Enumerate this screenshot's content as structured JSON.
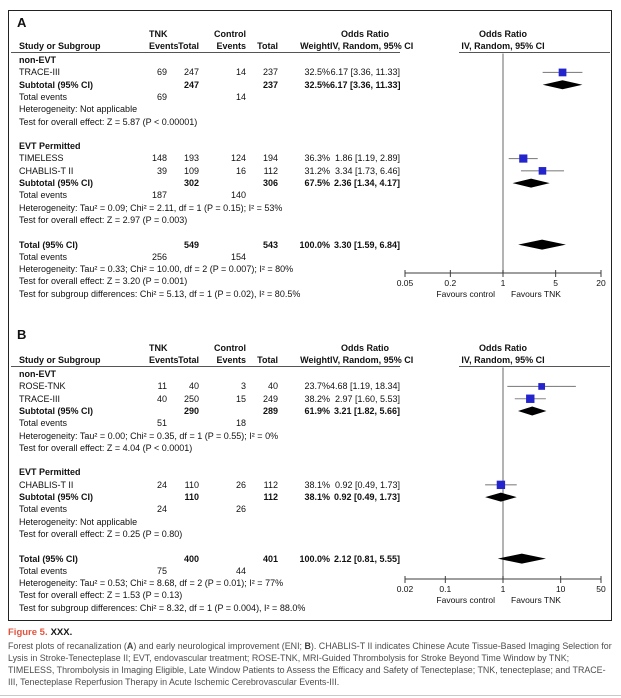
{
  "chart_data": [
    {
      "type": "forest",
      "panel": "A",
      "outcome": "Recanalization",
      "x_scale": "log",
      "x_ticks": [
        0.05,
        0.2,
        1,
        5,
        20
      ],
      "xlabel_left": "Favours control",
      "xlabel_right": "Favours TNK",
      "effect_label": "Odds Ratio IV, Random, 95% CI",
      "points": [
        {
          "name": "TRACE-III (non-EVT)",
          "or": 6.17,
          "lo": 3.36,
          "hi": 11.33,
          "weight": 32.5
        },
        {
          "name": "Subtotal non-EVT",
          "or": 6.17,
          "lo": 3.36,
          "hi": 11.33,
          "weight": 32.5,
          "pooled": true
        },
        {
          "name": "TIMELESS",
          "or": 1.86,
          "lo": 1.19,
          "hi": 2.89,
          "weight": 36.3
        },
        {
          "name": "CHABLIS-T II",
          "or": 3.34,
          "lo": 1.73,
          "hi": 6.46,
          "weight": 31.2
        },
        {
          "name": "Subtotal EVT Permitted",
          "or": 2.36,
          "lo": 1.34,
          "hi": 4.17,
          "weight": 67.5,
          "pooled": true
        },
        {
          "name": "Total",
          "or": 3.3,
          "lo": 1.59,
          "hi": 6.84,
          "weight": 100.0,
          "pooled": true
        }
      ]
    },
    {
      "type": "forest",
      "panel": "B",
      "outcome": "Early neurological improvement (ENI)",
      "x_scale": "log",
      "x_ticks": [
        0.02,
        0.1,
        1,
        10,
        50
      ],
      "xlabel_left": "Favours control",
      "xlabel_right": "Favours TNK",
      "effect_label": "Odds Ratio IV, Random, 95% CI",
      "points": [
        {
          "name": "ROSE-TNK (non-EVT)",
          "or": 4.68,
          "lo": 1.19,
          "hi": 18.34,
          "weight": 23.7
        },
        {
          "name": "TRACE-III (non-EVT)",
          "or": 2.97,
          "lo": 1.6,
          "hi": 5.53,
          "weight": 38.2
        },
        {
          "name": "Subtotal non-EVT",
          "or": 3.21,
          "lo": 1.82,
          "hi": 5.66,
          "weight": 61.9,
          "pooled": true
        },
        {
          "name": "CHABLIS-T II (EVT Permitted)",
          "or": 0.92,
          "lo": 0.49,
          "hi": 1.73,
          "weight": 38.1
        },
        {
          "name": "Subtotal EVT Permitted",
          "or": 0.92,
          "lo": 0.49,
          "hi": 1.73,
          "weight": 38.1,
          "pooled": true
        },
        {
          "name": "Total",
          "or": 2.12,
          "lo": 0.81,
          "hi": 5.55,
          "weight": 100.0,
          "pooled": true
        }
      ]
    }
  ],
  "panels": [
    {
      "label": "A",
      "columns": {
        "study": "Study or Subgroup",
        "events": "Events",
        "total": "Total",
        "weight": "Weight",
        "or_ci": "IV, Random, 95% CI",
        "tnk": "TNK",
        "control": "Control",
        "odds_ratio": "Odds Ratio"
      },
      "axis": {
        "ticks": [
          "0.05",
          "0.2",
          "1",
          "5",
          "20"
        ],
        "favours_left": "Favours control",
        "favours_right": "Favours TNK"
      },
      "rows": [
        {
          "type": "group",
          "label": "non-EVT"
        },
        {
          "type": "study",
          "label": "TRACE-III",
          "e1": "69",
          "t1": "247",
          "e2": "14",
          "t2": "237",
          "w": "32.5%",
          "or": "6.17 [3.36, 11.33]",
          "est": 6.17,
          "lo": 3.36,
          "hi": 11.33
        },
        {
          "type": "subtotal",
          "label": "Subtotal (95% CI)",
          "t1": "247",
          "t2": "237",
          "w": "32.5%",
          "or": "6.17 [3.36, 11.33]",
          "est": 6.17,
          "lo": 3.36,
          "hi": 11.33
        },
        {
          "type": "events",
          "label": "Total events",
          "e1": "69",
          "e2": "14"
        },
        {
          "type": "note",
          "label": "Heterogeneity: Not applicable"
        },
        {
          "type": "note",
          "label": "Test for overall effect: Z = 5.87 (P < 0.00001)"
        },
        {
          "type": "spacer"
        },
        {
          "type": "group",
          "label": "EVT Permitted"
        },
        {
          "type": "study",
          "label": "TIMELESS",
          "e1": "148",
          "t1": "193",
          "e2": "124",
          "t2": "194",
          "w": "36.3%",
          "or": "1.86 [1.19, 2.89]",
          "est": 1.86,
          "lo": 1.19,
          "hi": 2.89
        },
        {
          "type": "study",
          "label": "CHABLIS-T II",
          "e1": "39",
          "t1": "109",
          "e2": "16",
          "t2": "112",
          "w": "31.2%",
          "or": "3.34 [1.73, 6.46]",
          "est": 3.34,
          "lo": 1.73,
          "hi": 6.46
        },
        {
          "type": "subtotal",
          "label": "Subtotal (95% CI)",
          "t1": "302",
          "t2": "306",
          "w": "67.5%",
          "or": "2.36 [1.34, 4.17]",
          "est": 2.36,
          "lo": 1.34,
          "hi": 4.17
        },
        {
          "type": "events",
          "label": "Total events",
          "e1": "187",
          "e2": "140"
        },
        {
          "type": "note",
          "label": "Heterogeneity: Tau² = 0.09; Chi² = 2.11, df = 1 (P = 0.15); I² = 53%"
        },
        {
          "type": "note",
          "label": "Test for overall effect: Z = 2.97 (P = 0.003)"
        },
        {
          "type": "spacer"
        },
        {
          "type": "total",
          "label": "Total (95% CI)",
          "t1": "549",
          "t2": "543",
          "w": "100.0%",
          "or": "3.30 [1.59, 6.84]",
          "est": 3.3,
          "lo": 1.59,
          "hi": 6.84
        },
        {
          "type": "events",
          "label": "Total events",
          "e1": "256",
          "e2": "154"
        },
        {
          "type": "note",
          "label": "Heterogeneity: Tau² = 0.33; Chi² = 10.00, df = 2 (P = 0.007); I² = 80%"
        },
        {
          "type": "note",
          "label": "Test for overall effect: Z = 3.20 (P = 0.001)"
        },
        {
          "type": "note",
          "label": "Test for subgroup differences: Chi² = 5.13, df = 1 (P = 0.02), I² = 80.5%"
        }
      ]
    },
    {
      "label": "B",
      "columns": {
        "study": "Study or Subgroup",
        "events": "Events",
        "total": "Total",
        "weight": "Weight",
        "or_ci": "IV, Random, 95% CI",
        "tnk": "TNK",
        "control": "Control",
        "odds_ratio": "Odds Ratio"
      },
      "axis": {
        "ticks": [
          "0.02",
          "0.1",
          "1",
          "10",
          "50"
        ],
        "favours_left": "Favours control",
        "favours_right": "Favours TNK"
      },
      "rows": [
        {
          "type": "group",
          "label": "non-EVT"
        },
        {
          "type": "study",
          "label": "ROSE-TNK",
          "e1": "11",
          "t1": "40",
          "e2": "3",
          "t2": "40",
          "w": "23.7%",
          "or": "4.68 [1.19, 18.34]",
          "est": 4.68,
          "lo": 1.19,
          "hi": 18.34
        },
        {
          "type": "study",
          "label": "TRACE-III",
          "e1": "40",
          "t1": "250",
          "e2": "15",
          "t2": "249",
          "w": "38.2%",
          "or": "2.97 [1.60, 5.53]",
          "est": 2.97,
          "lo": 1.6,
          "hi": 5.53
        },
        {
          "type": "subtotal",
          "label": "Subtotal (95% CI)",
          "t1": "290",
          "t2": "289",
          "w": "61.9%",
          "or": "3.21 [1.82, 5.66]",
          "est": 3.21,
          "lo": 1.82,
          "hi": 5.66
        },
        {
          "type": "events",
          "label": "Total events",
          "e1": "51",
          "e2": "18"
        },
        {
          "type": "note",
          "label": "Heterogeneity: Tau² = 0.00; Chi² = 0.35, df = 1 (P = 0.55); I² = 0%"
        },
        {
          "type": "note",
          "label": "Test for overall effect: Z = 4.04 (P < 0.0001)"
        },
        {
          "type": "spacer"
        },
        {
          "type": "group",
          "label": "EVT Permitted"
        },
        {
          "type": "study",
          "label": "CHABLIS-T II",
          "e1": "24",
          "t1": "110",
          "e2": "26",
          "t2": "112",
          "w": "38.1%",
          "or": "0.92 [0.49, 1.73]",
          "est": 0.92,
          "lo": 0.49,
          "hi": 1.73
        },
        {
          "type": "subtotal",
          "label": "Subtotal (95% CI)",
          "t1": "110",
          "t2": "112",
          "w": "38.1%",
          "or": "0.92 [0.49, 1.73]",
          "est": 0.92,
          "lo": 0.49,
          "hi": 1.73
        },
        {
          "type": "events",
          "label": "Total events",
          "e1": "24",
          "e2": "26"
        },
        {
          "type": "note",
          "label": "Heterogeneity: Not applicable"
        },
        {
          "type": "note",
          "label": "Test for overall effect: Z = 0.25 (P = 0.80)"
        },
        {
          "type": "spacer"
        },
        {
          "type": "total",
          "label": "Total (95% CI)",
          "t1": "400",
          "t2": "401",
          "w": "100.0%",
          "or": "2.12 [0.81, 5.55]",
          "est": 2.12,
          "lo": 0.81,
          "hi": 5.55
        },
        {
          "type": "events",
          "label": "Total events",
          "e1": "75",
          "e2": "44"
        },
        {
          "type": "note",
          "label": "Heterogeneity: Tau² = 0.53; Chi² = 8.68, df = 2 (P = 0.01); I² = 77%"
        },
        {
          "type": "note",
          "label": "Test for overall effect: Z = 1.53 (P = 0.13)"
        },
        {
          "type": "note",
          "label": "Test for subgroup differences: Chi² = 8.32, df = 1 (P = 0.004), I² = 88.0%"
        }
      ]
    }
  ],
  "caption": {
    "label": "Figure 5.",
    "title": "XXX.",
    "segments": [
      {
        "t": "Forest plots of recanalization ("
      },
      {
        "t": "A",
        "b": true
      },
      {
        "t": ") and early neurological improvement (ENI; "
      },
      {
        "t": "B",
        "b": true
      },
      {
        "t": "). CHABLIS-T II indicates Chinese Acute Tissue-Based Imaging Selection for Lysis in Stroke-Tenecteplase II; EVT, endovascular treatment; ROSE-TNK, MRI-Guided Thrombolysis for Stroke Beyond Time Window by TNK; TIMELESS, Thrombolysis in Imaging Eligible, Late Window Patients to Assess the Efficacy and Safety of Tenecteplase; TNK, tenecteplase; and TRACE-III, Tenecteplase Reperfusion Therapy in Acute Ischemic Cerebrovascular Events-III."
      }
    ]
  },
  "colors": {
    "marker_blue": "#2424cc",
    "diamond_black": "#000000",
    "figure_label_red": "#e0543f",
    "ci_line_gray": "#858585",
    "axis_gray": "#3d3d3d"
  }
}
